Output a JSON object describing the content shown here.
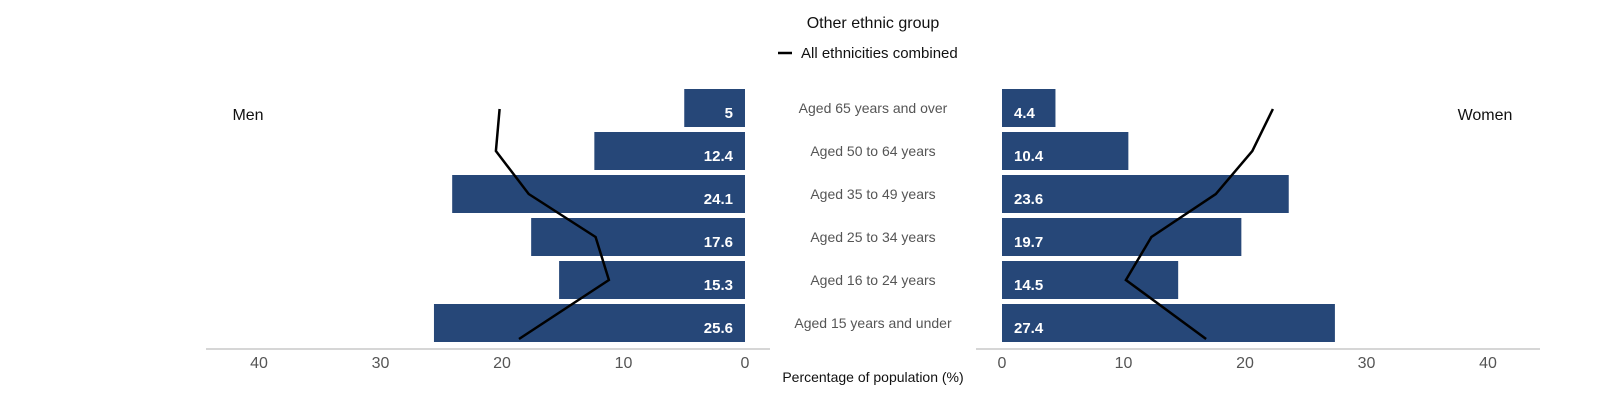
{
  "chart_data": {
    "type": "bar",
    "subtype": "population-pyramid",
    "title": "Other ethnic group",
    "legend": {
      "label": "All ethnicities combined",
      "placement": "top-center"
    },
    "side_labels": {
      "left": "Men",
      "right": "Women"
    },
    "xlabel": "Percentage of population (%)",
    "xlim": [
      0,
      40
    ],
    "x_ticks": [
      0,
      10,
      20,
      30,
      40
    ],
    "grid": false,
    "categories": [
      "Aged 65 years and over",
      "Aged 50 to 64 years",
      "Aged 35 to 49 years",
      "Aged 25 to 34 years",
      "Aged 16 to 24 years",
      "Aged 15 years and under"
    ],
    "series": [
      {
        "name": "Men",
        "values": [
          5,
          12.4,
          24.1,
          17.6,
          15.3,
          25.6
        ],
        "labels": [
          "5",
          "12.4",
          "24.1",
          "17.6",
          "15.3",
          "25.6"
        ]
      },
      {
        "name": "Women",
        "values": [
          4.4,
          10.4,
          23.6,
          19.7,
          14.5,
          27.4
        ],
        "labels": [
          "4.4",
          "10.4",
          "23.6",
          "19.7",
          "14.5",
          "27.4"
        ]
      }
    ],
    "comparison_lines": {
      "name": "All ethnicities combined",
      "men": [
        20.2,
        20.5,
        17.8,
        12.3,
        11.2,
        18.6
      ],
      "women": [
        22.3,
        20.6,
        17.6,
        12.3,
        10.2,
        16.8
      ]
    },
    "colors": {
      "bar": "#264778",
      "bar_label": "#ffffff",
      "line": "#000000",
      "axis": "#c8c8c8",
      "category_text": "#555555",
      "tick_text": "#555555",
      "title_text": "#111111"
    }
  }
}
